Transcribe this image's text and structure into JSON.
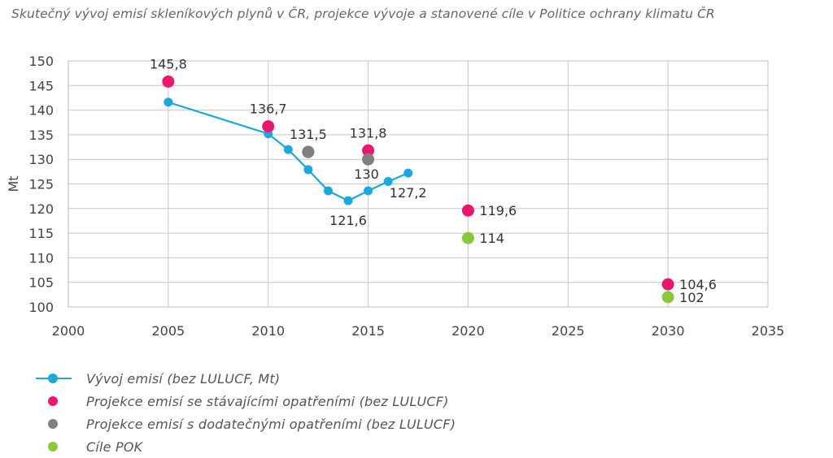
{
  "title": "Skutečný vývoj emisí skleníkových plynů v ČR, projekce vývoje a stanovené cíle v Politice ochrany klimatu ČR",
  "chart_data": {
    "type": "scatter",
    "ylabel": "Mt",
    "xlabel": "",
    "xlim": [
      2000,
      2035
    ],
    "ylim": [
      100,
      150
    ],
    "xticks": [
      2000,
      2005,
      2010,
      2015,
      2020,
      2025,
      2030,
      2035
    ],
    "yticks": [
      100,
      105,
      110,
      115,
      120,
      125,
      130,
      135,
      140,
      145,
      150
    ],
    "grid": true,
    "legend_position": "bottom",
    "series": [
      {
        "name": "Vývoj emisí (bez LULUCF, Mt)",
        "kind": "line",
        "color": "#1aa8dd",
        "x": [
          2005,
          2010,
          2011,
          2012,
          2013,
          2014,
          2015,
          2016,
          2017
        ],
        "y": [
          141.6,
          135.2,
          132.0,
          127.9,
          123.6,
          121.6,
          123.6,
          125.5,
          127.2
        ]
      },
      {
        "name": "Projekce emisí se stávajícími opatřeními (bez LULUCF)",
        "kind": "points",
        "color": "#e8186d",
        "x": [
          2005,
          2010,
          2012,
          2015,
          2020,
          2030
        ],
        "y": [
          145.8,
          136.7,
          131.5,
          131.8,
          119.6,
          104.6
        ]
      },
      {
        "name": "Projekce emisí s dodatečnými opatřeními (bez LULUCF)",
        "kind": "points",
        "color": "#808080",
        "x": [
          2012,
          2015
        ],
        "y": [
          131.5,
          130
        ]
      },
      {
        "name": "Cíle POK",
        "kind": "points",
        "color": "#8cc63f",
        "x": [
          2020,
          2030
        ],
        "y": [
          114,
          102
        ]
      }
    ],
    "annotations": [
      {
        "text": "145,8",
        "x": 2005,
        "y": 145.8,
        "pos": "above"
      },
      {
        "text": "136,7",
        "x": 2010,
        "y": 136.7,
        "pos": "above"
      },
      {
        "text": "131,5",
        "x": 2012,
        "y": 131.5,
        "pos": "above"
      },
      {
        "text": "131,8",
        "x": 2015,
        "y": 131.8,
        "pos": "above"
      },
      {
        "text": "130",
        "x": 2015,
        "y": 130,
        "pos": "below-left"
      },
      {
        "text": "121,6",
        "x": 2014,
        "y": 121.6,
        "pos": "below"
      },
      {
        "text": "127,2",
        "x": 2017,
        "y": 127.2,
        "pos": "below"
      },
      {
        "text": "119,6",
        "x": 2020,
        "y": 119.6,
        "pos": "right"
      },
      {
        "text": "114",
        "x": 2020,
        "y": 114,
        "pos": "right"
      },
      {
        "text": "104,6",
        "x": 2030,
        "y": 104.6,
        "pos": "right"
      },
      {
        "text": "102",
        "x": 2030,
        "y": 102,
        "pos": "right"
      }
    ]
  }
}
